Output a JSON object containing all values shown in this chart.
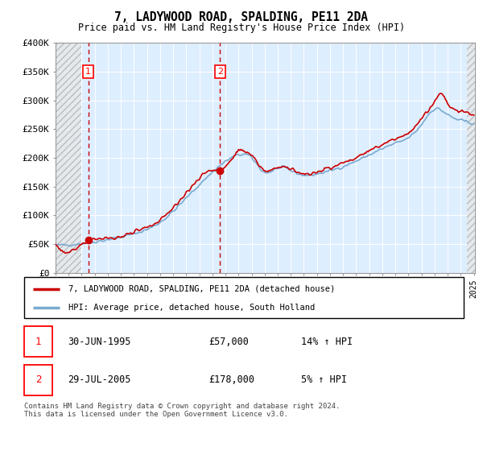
{
  "title": "7, LADYWOOD ROAD, SPALDING, PE11 2DA",
  "subtitle": "Price paid vs. HM Land Registry's House Price Index (HPI)",
  "footer": "Contains HM Land Registry data © Crown copyright and database right 2024.\nThis data is licensed under the Open Government Licence v3.0.",
  "legend_line1": "7, LADYWOOD ROAD, SPALDING, PE11 2DA (detached house)",
  "legend_line2": "HPI: Average price, detached house, South Holland",
  "transaction1_date": "30-JUN-1995",
  "transaction1_price": "£57,000",
  "transaction1_hpi": "14% ↑ HPI",
  "transaction1_year": 1995.5,
  "transaction1_value": 57000,
  "transaction2_date": "29-JUL-2005",
  "transaction2_price": "£178,000",
  "transaction2_hpi": "5% ↑ HPI",
  "transaction2_year": 2005.58,
  "transaction2_value": 178000,
  "red_line_color": "#cc0000",
  "blue_line_color": "#7aaad0",
  "background_color": "#ddeeff",
  "hatch_color": "#aaaaaa",
  "ylim": [
    0,
    400000
  ],
  "yticks": [
    0,
    50000,
    100000,
    150000,
    200000,
    250000,
    300000,
    350000,
    400000
  ],
  "ytick_labels": [
    "£0",
    "£50K",
    "£100K",
    "£150K",
    "£200K",
    "£250K",
    "£300K",
    "£350K",
    "£400K"
  ],
  "xlim_left": 1993,
  "xlim_right": 2025.08,
  "hatch_left_end": 1995.0,
  "hatch_right_start": 2024.5
}
